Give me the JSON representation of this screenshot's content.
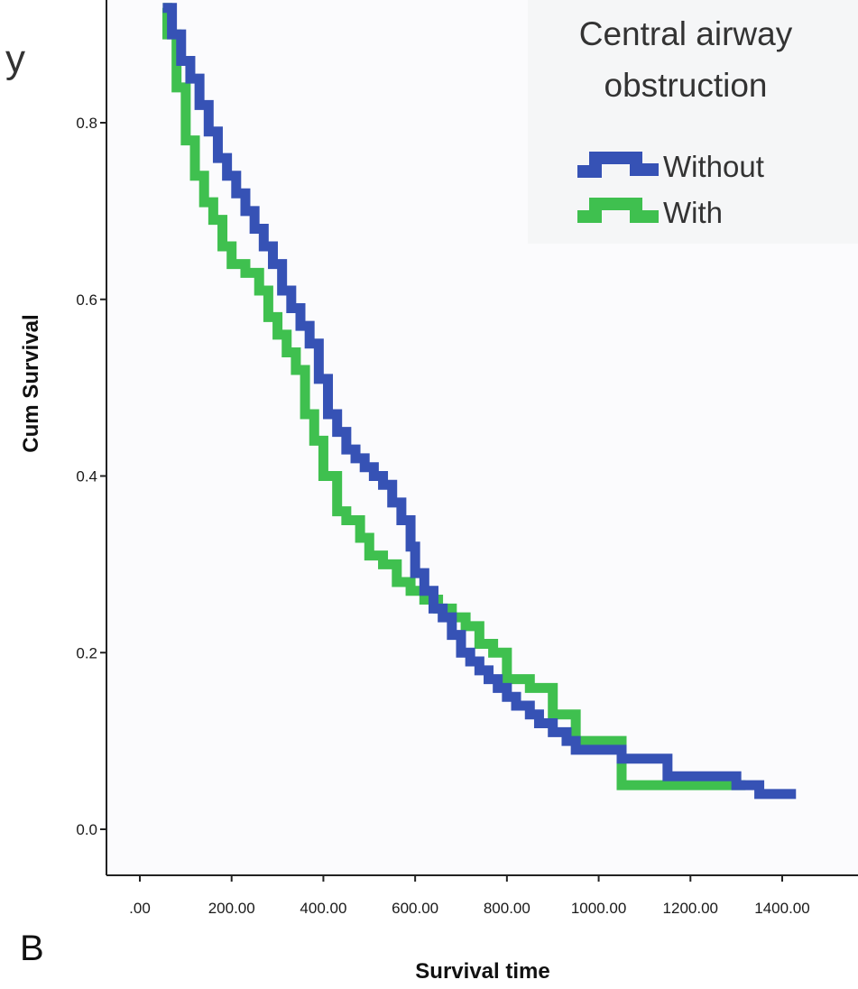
{
  "panel_label": "B",
  "clipped_title_fragment": "y",
  "colors": {
    "plot_background": "#fbfbfd",
    "axis": "#222222",
    "without": "#3652b5",
    "with": "#3fc04f"
  },
  "chart_data": {
    "type": "line",
    "step": true,
    "xlabel": "Survival time",
    "ylabel": "Cum Survival",
    "xlim": [
      -30,
      1530
    ],
    "ylim": [
      -0.05,
      0.93
    ],
    "xticks": [
      0,
      200,
      400,
      600,
      800,
      1000,
      1200,
      1400
    ],
    "xtick_labels": [
      ".00",
      "200.00",
      "400.00",
      "600.00",
      "800.00",
      "1000.00",
      "1200.00",
      "1400.00"
    ],
    "yticks": [
      0.0,
      0.2,
      0.4,
      0.6,
      0.8
    ],
    "ytick_labels": [
      "0.0",
      "0.2",
      "0.4",
      "0.6",
      "0.8"
    ],
    "legend": {
      "title_lines": [
        "Central airway",
        "obstruction"
      ],
      "position": "top-right"
    },
    "series": [
      {
        "name": "Without",
        "color": "#3652b5",
        "x": [
          50,
          70,
          90,
          110,
          130,
          150,
          170,
          190,
          210,
          230,
          250,
          270,
          290,
          310,
          330,
          350,
          370,
          390,
          410,
          430,
          450,
          470,
          490,
          510,
          530,
          550,
          570,
          590,
          600,
          620,
          640,
          660,
          680,
          700,
          720,
          740,
          760,
          780,
          800,
          820,
          850,
          870,
          900,
          930,
          950,
          980,
          1000,
          1050,
          1100,
          1150,
          1200,
          1250,
          1300,
          1350,
          1400,
          1430
        ],
        "y": [
          0.93,
          0.9,
          0.87,
          0.85,
          0.82,
          0.79,
          0.76,
          0.74,
          0.72,
          0.7,
          0.68,
          0.66,
          0.64,
          0.61,
          0.59,
          0.57,
          0.55,
          0.51,
          0.47,
          0.45,
          0.43,
          0.42,
          0.41,
          0.4,
          0.39,
          0.37,
          0.35,
          0.32,
          0.29,
          0.27,
          0.25,
          0.24,
          0.22,
          0.2,
          0.19,
          0.18,
          0.17,
          0.16,
          0.15,
          0.14,
          0.13,
          0.12,
          0.11,
          0.1,
          0.09,
          0.09,
          0.09,
          0.08,
          0.08,
          0.06,
          0.06,
          0.06,
          0.05,
          0.04,
          0.04,
          0.04
        ]
      },
      {
        "name": "With",
        "color": "#3fc04f",
        "x": [
          50,
          60,
          80,
          100,
          120,
          140,
          160,
          180,
          200,
          230,
          260,
          280,
          300,
          320,
          340,
          360,
          380,
          400,
          430,
          450,
          480,
          500,
          530,
          560,
          590,
          620,
          650,
          680,
          710,
          740,
          770,
          800,
          850,
          900,
          950,
          1000,
          1050,
          1100,
          1200,
          1280,
          1320
        ],
        "y": [
          0.93,
          0.9,
          0.84,
          0.78,
          0.74,
          0.71,
          0.69,
          0.66,
          0.64,
          0.63,
          0.61,
          0.58,
          0.56,
          0.54,
          0.52,
          0.47,
          0.44,
          0.4,
          0.36,
          0.35,
          0.33,
          0.31,
          0.3,
          0.28,
          0.27,
          0.26,
          0.25,
          0.24,
          0.23,
          0.21,
          0.2,
          0.17,
          0.16,
          0.13,
          0.1,
          0.1,
          0.05,
          0.05,
          0.05,
          0.05,
          0.05
        ]
      }
    ]
  }
}
